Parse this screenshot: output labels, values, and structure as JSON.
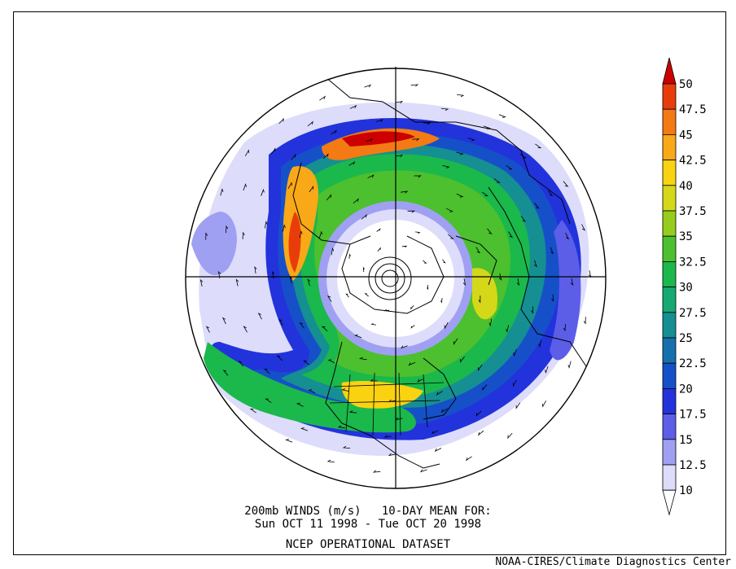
{
  "caption": {
    "line1": "200mb WINDS (m/s)   10-DAY MEAN FOR:",
    "line2": "Sun OCT 11 1998 - Tue OCT 20 1998",
    "line3": "NCEP OPERATIONAL DATASET"
  },
  "credit": "NOAA-CIRES/Climate Diagnostics Center",
  "colorbar": {
    "levels": [
      {
        "label": "50",
        "color": "#cc0000"
      },
      {
        "label": "47.5",
        "color": "#e83d0a"
      },
      {
        "label": "45",
        "color": "#f47a14"
      },
      {
        "label": "42.5",
        "color": "#f9a818"
      },
      {
        "label": "40",
        "color": "#fad212"
      },
      {
        "label": "37.5",
        "color": "#d4d818"
      },
      {
        "label": "35",
        "color": "#95cc1d"
      },
      {
        "label": "32.5",
        "color": "#4cc02e"
      },
      {
        "label": "30",
        "color": "#1bb84c"
      },
      {
        "label": "27.5",
        "color": "#16a972"
      },
      {
        "label": "25",
        "color": "#158f92"
      },
      {
        "label": "22.5",
        "color": "#1570ad"
      },
      {
        "label": "20",
        "color": "#1650c8"
      },
      {
        "label": "17.5",
        "color": "#2233dc"
      },
      {
        "label": "15",
        "color": "#5c5ee8"
      },
      {
        "label": "12.5",
        "color": "#9fa0f2"
      },
      {
        "label": "10",
        "color": "#dddcfb"
      }
    ]
  }
}
